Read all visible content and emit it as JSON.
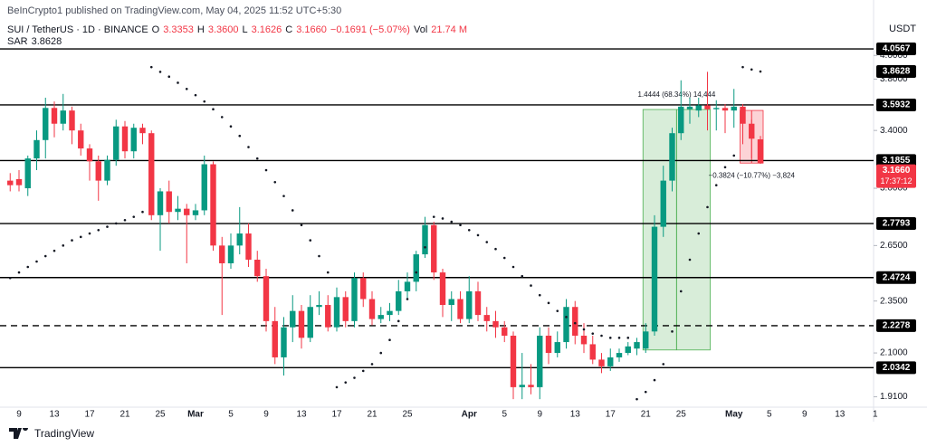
{
  "chart_data": {
    "type": "candlestick",
    "publisher": "BeInCrypto1 published on TradingView.com, May 04, 2025 11:52 UTC+5:30",
    "title": "SUI / TetherUS · 1D · BINANCE",
    "ohlc_header": [
      {
        "label": "O",
        "value": "3.3353"
      },
      {
        "label": "H",
        "value": "3.3600"
      },
      {
        "label": "L",
        "value": "3.1626"
      },
      {
        "label": "C",
        "value": "3.1660"
      }
    ],
    "change": "−0.1691 (−5.07%)",
    "volume_label": "Vol",
    "volume": "21.74 M",
    "indicator": "SAR",
    "currency": "USDT",
    "brand": "TradingView",
    "log_scale": true,
    "grid": false,
    "up_color": "#089981",
    "down_color": "#f23645",
    "sar_color": "#131722",
    "level_color": "#000000",
    "categories": [
      null,
      "9",
      null,
      null,
      null,
      "13",
      null,
      null,
      null,
      "17",
      null,
      null,
      null,
      "21",
      null,
      null,
      null,
      "25",
      null,
      null,
      null,
      "Mar",
      null,
      null,
      null,
      "5",
      null,
      null,
      null,
      "9",
      null,
      null,
      null,
      "13",
      null,
      null,
      null,
      "17",
      null,
      null,
      null,
      "21",
      null,
      null,
      null,
      "25",
      null,
      null,
      null,
      null,
      null,
      null,
      "Apr",
      null,
      null,
      null,
      "5",
      null,
      null,
      null,
      "9",
      null,
      null,
      null,
      "13",
      null,
      null,
      null,
      "17",
      null,
      null,
      null,
      "21",
      null,
      null,
      null,
      "25",
      null,
      null,
      null,
      null,
      null,
      "May",
      null,
      null,
      null,
      "5",
      null,
      null,
      null,
      "9",
      null,
      null,
      null,
      "13",
      null,
      null,
      null,
      "1"
    ],
    "open": [
      3.05,
      3.06,
      3.0,
      3.2,
      3.33,
      3.57,
      3.45,
      3.55,
      3.4,
      3.27,
      3.18,
      3.05,
      3.19,
      3.43,
      3.25,
      3.42,
      3.38,
      2.83,
      2.98,
      2.85,
      2.87,
      2.83,
      2.86,
      3.16,
      2.65,
      2.55,
      2.65,
      2.72,
      2.57,
      2.48,
      2.25,
      2.08,
      2.22,
      2.3,
      2.17,
      2.32,
      2.33,
      2.22,
      2.37,
      2.25,
      2.47,
      2.36,
      2.26,
      2.28,
      2.3,
      2.4,
      2.45,
      2.6,
      2.77,
      2.5,
      2.33,
      2.36,
      2.26,
      2.4,
      2.28,
      2.25,
      2.22,
      2.18,
      1.95,
      1.96,
      1.95,
      2.18,
      2.1,
      2.15,
      2.32,
      2.18,
      2.14,
      2.07,
      2.04,
      2.08,
      2.1,
      2.12,
      2.12,
      2.2,
      2.76,
      3.05,
      3.38,
      3.56,
      3.55,
      3.59,
      3.56,
      3.57,
      3.55,
      3.58,
      3.45,
      3.3353,
      null,
      null,
      null,
      null,
      null,
      null,
      null,
      null,
      null,
      null,
      null,
      null,
      null
    ],
    "high": [
      3.1,
      3.12,
      3.22,
      3.4,
      3.65,
      3.62,
      3.68,
      3.58,
      3.45,
      3.3,
      3.22,
      3.22,
      3.48,
      3.47,
      3.45,
      3.45,
      3.4,
      3.0,
      3.05,
      2.95,
      2.9,
      2.9,
      3.22,
      3.18,
      2.7,
      2.72,
      2.88,
      2.78,
      2.62,
      2.52,
      2.32,
      2.27,
      2.38,
      2.33,
      2.38,
      2.4,
      2.38,
      2.42,
      2.4,
      2.5,
      2.5,
      2.4,
      2.32,
      2.34,
      2.46,
      2.5,
      2.62,
      2.82,
      2.79,
      2.52,
      2.4,
      2.4,
      2.48,
      2.45,
      2.32,
      2.3,
      2.25,
      2.2,
      2.1,
      2.05,
      2.22,
      2.22,
      2.2,
      2.36,
      2.35,
      2.24,
      2.18,
      2.1,
      2.12,
      2.12,
      2.15,
      2.17,
      2.24,
      2.83,
      3.15,
      3.42,
      3.79,
      3.65,
      3.65,
      3.86,
      3.63,
      3.6,
      3.72,
      3.6,
      3.48,
      3.36,
      null,
      null,
      null,
      null,
      null,
      null,
      null,
      null,
      null,
      null,
      null,
      null,
      null
    ],
    "low": [
      2.98,
      2.98,
      2.95,
      3.12,
      3.2,
      3.35,
      3.4,
      3.3,
      3.22,
      3.05,
      2.92,
      3.02,
      3.15,
      3.2,
      3.2,
      3.3,
      2.8,
      2.62,
      2.78,
      2.8,
      2.55,
      2.8,
      2.83,
      2.62,
      2.28,
      2.52,
      2.6,
      2.53,
      2.45,
      2.2,
      2.05,
      2.0,
      2.15,
      2.12,
      2.15,
      2.28,
      2.2,
      2.2,
      2.22,
      2.22,
      2.32,
      2.23,
      2.24,
      2.25,
      2.28,
      2.36,
      2.4,
      2.58,
      2.46,
      2.27,
      2.25,
      2.24,
      2.24,
      2.25,
      2.2,
      2.17,
      2.15,
      1.9,
      1.9,
      1.92,
      1.9,
      2.05,
      2.08,
      2.12,
      2.14,
      2.1,
      2.05,
      2.01,
      2.02,
      2.06,
      2.09,
      2.09,
      2.1,
      2.18,
      2.7,
      2.98,
      3.33,
      3.45,
      3.5,
      3.4,
      3.4,
      3.38,
      3.42,
      3.3,
      3.2,
      3.1626,
      null,
      null,
      null,
      null,
      null,
      null,
      null,
      null,
      null,
      null,
      null,
      null,
      null
    ],
    "close": [
      3.02,
      3.02,
      3.2,
      3.33,
      3.57,
      3.45,
      3.55,
      3.4,
      3.27,
      3.18,
      3.05,
      3.19,
      3.43,
      3.25,
      3.42,
      3.38,
      2.83,
      2.98,
      2.85,
      2.87,
      2.83,
      2.86,
      3.16,
      2.65,
      2.55,
      2.65,
      2.72,
      2.57,
      2.48,
      2.25,
      2.08,
      2.22,
      2.3,
      2.17,
      2.32,
      2.33,
      2.22,
      2.37,
      2.25,
      2.47,
      2.36,
      2.26,
      2.28,
      2.3,
      2.4,
      2.45,
      2.6,
      2.77,
      2.5,
      2.33,
      2.36,
      2.26,
      2.4,
      2.28,
      2.25,
      2.22,
      2.18,
      1.95,
      1.96,
      1.95,
      2.18,
      2.1,
      2.15,
      2.32,
      2.18,
      2.14,
      2.07,
      2.04,
      2.08,
      2.1,
      2.13,
      2.15,
      2.2,
      2.76,
      3.05,
      3.38,
      3.58,
      3.58,
      3.59,
      3.56,
      3.57,
      3.55,
      3.58,
      3.45,
      3.34,
      3.166,
      null,
      null,
      null,
      null,
      null,
      null,
      null,
      null,
      null,
      null,
      null,
      null,
      null
    ],
    "sar": [
      2.47,
      2.5,
      2.53,
      2.56,
      2.59,
      2.62,
      2.65,
      2.68,
      2.7,
      2.72,
      2.74,
      2.76,
      2.78,
      2.8,
      2.82,
      2.85,
      3.9,
      3.86,
      3.82,
      3.77,
      3.72,
      3.67,
      3.62,
      3.56,
      3.5,
      3.43,
      3.36,
      3.28,
      3.2,
      3.12,
      3.04,
      2.95,
      2.86,
      2.77,
      2.68,
      2.59,
      2.5,
      1.95,
      1.97,
      1.99,
      2.02,
      2.05,
      2.1,
      2.16,
      2.25,
      2.36,
      2.5,
      2.64,
      2.82,
      2.81,
      2.79,
      2.77,
      2.74,
      2.71,
      2.67,
      2.63,
      2.58,
      2.53,
      2.48,
      2.43,
      2.38,
      2.34,
      2.3,
      2.27,
      2.24,
      2.21,
      2.19,
      2.18,
      2.17,
      2.17,
      2.17,
      1.9,
      1.93,
      1.98,
      2.05,
      2.2,
      2.4,
      2.57,
      2.72,
      2.88,
      3.02,
      3.14,
      3.22,
      3.9,
      3.88,
      3.8628,
      null,
      null,
      null,
      null,
      null,
      null,
      null,
      null,
      null,
      null,
      null,
      null,
      null
    ],
    "last_price_label": "3.1660",
    "countdown": "17:37:12",
    "ylim": [
      1.86,
      4.17
    ],
    "yticks": [
      {
        "value": 4,
        "label": "4.0000"
      },
      {
        "value": 3.8,
        "label": "3.8000"
      },
      {
        "value": 3.4,
        "label": "3.4000"
      },
      {
        "value": 3,
        "label": "3.0000"
      },
      {
        "value": 2.65,
        "label": "2.6500"
      },
      {
        "value": 2.35,
        "label": "2.3500"
      },
      {
        "value": 2.1,
        "label": "2.1000"
      },
      {
        "value": 1.91,
        "label": "1.9100"
      }
    ],
    "levels": [
      {
        "value": 4.0567,
        "style": "solid"
      },
      {
        "value": 3.5932,
        "style": "solid"
      },
      {
        "value": 3.1855,
        "style": "solid"
      },
      {
        "value": 2.7793,
        "style": "solid"
      },
      {
        "value": 2.4724,
        "style": "solid"
      },
      {
        "value": 2.2278,
        "style": "dashed"
      },
      {
        "value": 2.0342,
        "style": "solid"
      }
    ],
    "measures": [
      {
        "label": "1.4444 (68.34%) 14,444",
        "start_price": 2.1136,
        "end_price": 3.558,
        "from_index": 72,
        "to_index": 79,
        "color": "#4caf50"
      },
      {
        "label": "−0.3824 (−10.77%) −3,824",
        "start_price": 3.5506,
        "end_price": 3.1682,
        "from_index": 83,
        "to_index": 85,
        "color": "#f23645"
      }
    ]
  }
}
